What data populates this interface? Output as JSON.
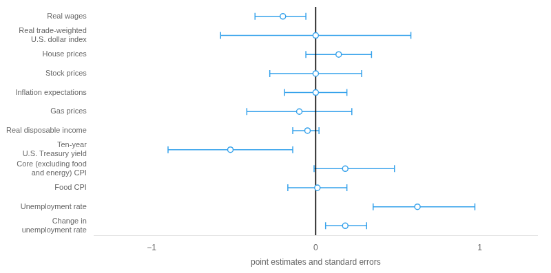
{
  "chart_data": {
    "type": "dot_whisker",
    "categories": [
      "Change in\nunemployment rate",
      "Unemployment rate",
      "Food CPI",
      "Core (excluding food\nand energy) CPI",
      "Ten-year\nU.S. Treasury yield",
      "Real disposable income",
      "Gas prices",
      "Inflation expectations",
      "Stock prices",
      "House prices",
      "Real trade-weighted\nU.S. dollar index",
      "Real wages"
    ],
    "values": [
      0.18,
      0.62,
      0.01,
      0.18,
      -0.52,
      -0.05,
      -0.1,
      0.0,
      0.0,
      0.14,
      0.0,
      -0.2
    ],
    "error_low": [
      0.12,
      0.27,
      0.18,
      0.19,
      0.38,
      0.09,
      0.32,
      0.19,
      0.28,
      0.2,
      0.58,
      0.17
    ],
    "error_high": [
      0.13,
      0.35,
      0.18,
      0.3,
      0.38,
      0.07,
      0.32,
      0.19,
      0.28,
      0.2,
      0.58,
      0.14
    ],
    "orientation": "horizontal",
    "xlabel": "point estimates and standard errors",
    "xlim": [
      -1.35,
      1.35
    ],
    "xticks": [
      {
        "value": -1,
        "label": "−1"
      },
      0,
      1
    ],
    "reference_line": {
      "x": 0,
      "color": "black"
    },
    "grid": false
  }
}
